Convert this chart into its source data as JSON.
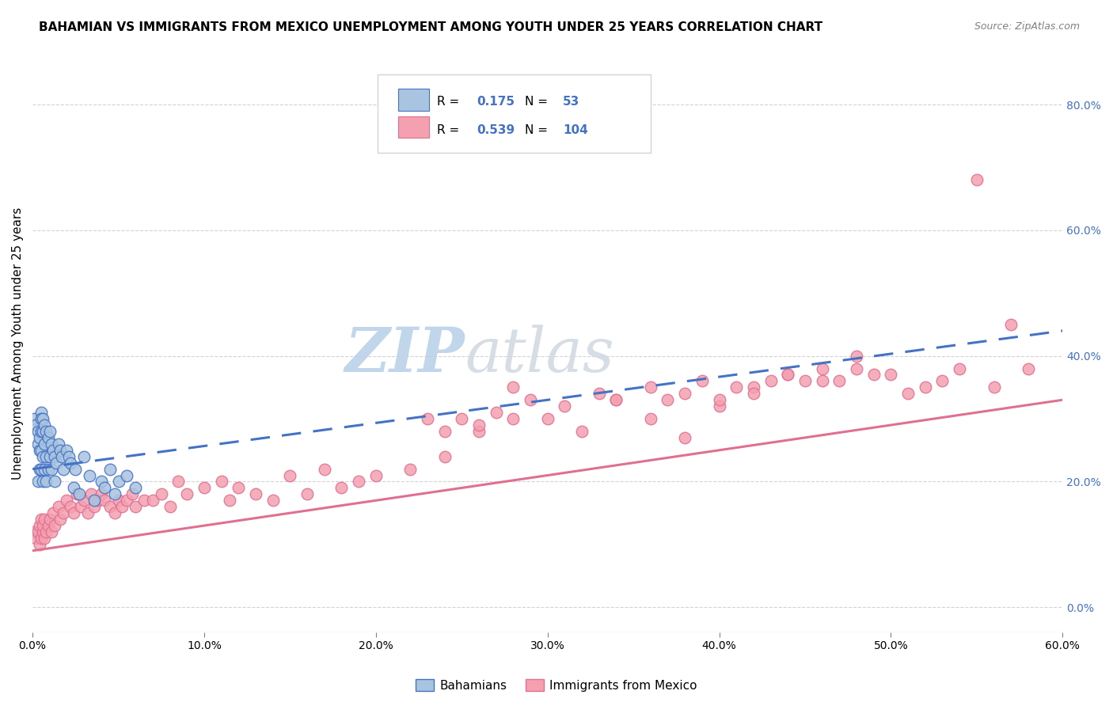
{
  "title": "BAHAMIAN VS IMMIGRANTS FROM MEXICO UNEMPLOYMENT AMONG YOUTH UNDER 25 YEARS CORRELATION CHART",
  "source": "Source: ZipAtlas.com",
  "ylabel": "Unemployment Among Youth under 25 years",
  "xlim": [
    0.0,
    0.6
  ],
  "ylim": [
    -0.04,
    0.88
  ],
  "xticks": [
    0.0,
    0.1,
    0.2,
    0.3,
    0.4,
    0.5,
    0.6
  ],
  "xtick_labels": [
    "0.0%",
    "10.0%",
    "20.0%",
    "30.0%",
    "40.0%",
    "50.0%",
    "60.0%"
  ],
  "yticks_right": [
    0.0,
    0.2,
    0.4,
    0.6,
    0.8
  ],
  "ytick_labels_right": [
    "0.0%",
    "20.0%",
    "40.0%",
    "60.0%",
    "80.0%"
  ],
  "r1_val": "0.175",
  "n1_val": "53",
  "r2_val": "0.539",
  "n2_val": "104",
  "bahamian_color": "#a8c4e0",
  "mexico_color": "#f4a0b0",
  "trendline_blue": "#4472c4",
  "trendline_pink": "#e07090",
  "watermark": "ZIPAtlas",
  "watermark_color": "#c8d8e8",
  "bahamian_x": [
    0.001,
    0.002,
    0.003,
    0.003,
    0.003,
    0.004,
    0.004,
    0.004,
    0.005,
    0.005,
    0.005,
    0.005,
    0.005,
    0.006,
    0.006,
    0.006,
    0.006,
    0.007,
    0.007,
    0.007,
    0.008,
    0.008,
    0.008,
    0.009,
    0.009,
    0.01,
    0.01,
    0.011,
    0.011,
    0.012,
    0.013,
    0.013,
    0.014,
    0.015,
    0.016,
    0.017,
    0.018,
    0.02,
    0.021,
    0.022,
    0.024,
    0.025,
    0.027,
    0.03,
    0.033,
    0.036,
    0.04,
    0.042,
    0.045,
    0.048,
    0.05,
    0.055,
    0.06
  ],
  "bahamian_y": [
    0.3,
    0.29,
    0.28,
    0.26,
    0.2,
    0.27,
    0.25,
    0.22,
    0.31,
    0.3,
    0.28,
    0.25,
    0.22,
    0.3,
    0.28,
    0.24,
    0.2,
    0.29,
    0.26,
    0.22,
    0.28,
    0.24,
    0.2,
    0.27,
    0.22,
    0.28,
    0.24,
    0.26,
    0.22,
    0.25,
    0.24,
    0.2,
    0.23,
    0.26,
    0.25,
    0.24,
    0.22,
    0.25,
    0.24,
    0.23,
    0.19,
    0.22,
    0.18,
    0.24,
    0.21,
    0.17,
    0.2,
    0.19,
    0.22,
    0.18,
    0.2,
    0.21,
    0.19
  ],
  "mexico_x": [
    0.001,
    0.002,
    0.003,
    0.004,
    0.004,
    0.005,
    0.005,
    0.006,
    0.006,
    0.007,
    0.007,
    0.008,
    0.009,
    0.01,
    0.011,
    0.012,
    0.013,
    0.015,
    0.016,
    0.018,
    0.02,
    0.022,
    0.024,
    0.026,
    0.028,
    0.03,
    0.032,
    0.034,
    0.036,
    0.038,
    0.04,
    0.042,
    0.045,
    0.048,
    0.05,
    0.052,
    0.055,
    0.058,
    0.06,
    0.065,
    0.07,
    0.075,
    0.08,
    0.085,
    0.09,
    0.1,
    0.11,
    0.115,
    0.12,
    0.13,
    0.14,
    0.15,
    0.16,
    0.17,
    0.18,
    0.19,
    0.2,
    0.22,
    0.24,
    0.26,
    0.28,
    0.3,
    0.32,
    0.34,
    0.36,
    0.38,
    0.4,
    0.42,
    0.44,
    0.46,
    0.48,
    0.5,
    0.52,
    0.54,
    0.56,
    0.58,
    0.57,
    0.55,
    0.53,
    0.51,
    0.49,
    0.48,
    0.47,
    0.46,
    0.45,
    0.44,
    0.43,
    0.42,
    0.41,
    0.4,
    0.39,
    0.38,
    0.37,
    0.36,
    0.34,
    0.33,
    0.31,
    0.29,
    0.28,
    0.27,
    0.26,
    0.25,
    0.24,
    0.23
  ],
  "mexico_y": [
    0.12,
    0.11,
    0.12,
    0.1,
    0.13,
    0.11,
    0.14,
    0.12,
    0.13,
    0.11,
    0.14,
    0.12,
    0.13,
    0.14,
    0.12,
    0.15,
    0.13,
    0.16,
    0.14,
    0.15,
    0.17,
    0.16,
    0.15,
    0.18,
    0.16,
    0.17,
    0.15,
    0.18,
    0.16,
    0.17,
    0.18,
    0.17,
    0.16,
    0.15,
    0.17,
    0.16,
    0.17,
    0.18,
    0.16,
    0.17,
    0.17,
    0.18,
    0.16,
    0.2,
    0.18,
    0.19,
    0.2,
    0.17,
    0.19,
    0.18,
    0.17,
    0.21,
    0.18,
    0.22,
    0.19,
    0.2,
    0.21,
    0.22,
    0.24,
    0.28,
    0.35,
    0.3,
    0.28,
    0.33,
    0.3,
    0.27,
    0.32,
    0.35,
    0.37,
    0.36,
    0.38,
    0.37,
    0.35,
    0.38,
    0.35,
    0.38,
    0.45,
    0.68,
    0.36,
    0.34,
    0.37,
    0.4,
    0.36,
    0.38,
    0.36,
    0.37,
    0.36,
    0.34,
    0.35,
    0.33,
    0.36,
    0.34,
    0.33,
    0.35,
    0.33,
    0.34,
    0.32,
    0.33,
    0.3,
    0.31,
    0.29,
    0.3,
    0.28,
    0.3
  ]
}
